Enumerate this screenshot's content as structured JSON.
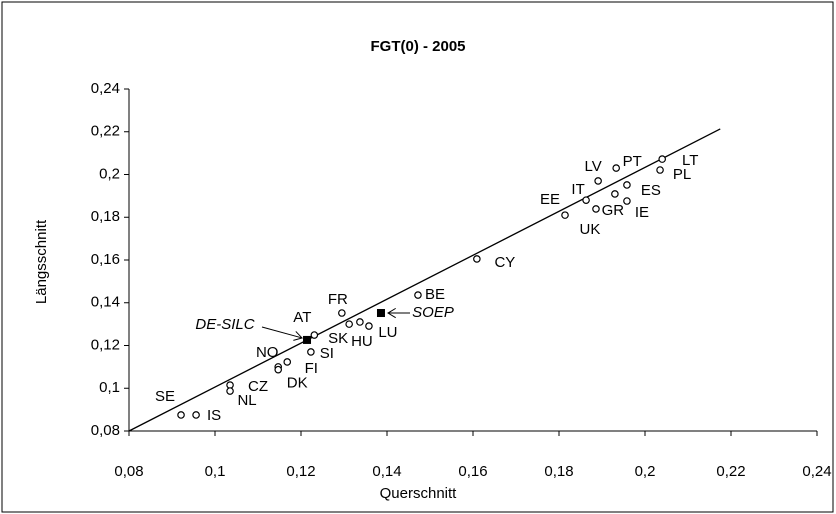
{
  "chart_data": {
    "type": "scatter",
    "title": "FGT(0) - 2005",
    "xlabel": "Querschnitt",
    "ylabel": "Längsschnitt",
    "xlim": [
      0.08,
      0.24
    ],
    "ylim": [
      0.08,
      0.24
    ],
    "xticks": [
      {
        "value": 0.08,
        "label": "0,08"
      },
      {
        "value": 0.1,
        "label": "0,1"
      },
      {
        "value": 0.12,
        "label": "0,12"
      },
      {
        "value": 0.14,
        "label": "0,14"
      },
      {
        "value": 0.16,
        "label": "0,16"
      },
      {
        "value": 0.18,
        "label": "0,18"
      },
      {
        "value": 0.2,
        "label": "0,2"
      },
      {
        "value": 0.22,
        "label": "0,22"
      },
      {
        "value": 0.24,
        "label": "0,24"
      }
    ],
    "yticks": [
      {
        "value": 0.08,
        "label": "0,08"
      },
      {
        "value": 0.1,
        "label": "0,1"
      },
      {
        "value": 0.12,
        "label": "0,12"
      },
      {
        "value": 0.14,
        "label": "0,14"
      },
      {
        "value": 0.16,
        "label": "0,16"
      },
      {
        "value": 0.18,
        "label": "0,18"
      },
      {
        "value": 0.2,
        "label": "0,2"
      },
      {
        "value": 0.22,
        "label": "0,22"
      },
      {
        "value": 0.24,
        "label": "0,24"
      }
    ],
    "points": {
      "labels": [
        "SE",
        "IS",
        "CZ",
        "NL",
        "NO",
        "DK",
        "FI",
        "SI",
        "AT",
        "SK",
        "HU",
        "LU",
        "FR",
        "BE",
        "CY",
        "EE",
        "IT",
        "UK",
        "LV",
        "GR",
        "PT",
        "ES",
        "IE",
        "LT",
        "PL"
      ],
      "x": [
        0.0921,
        0.0956,
        0.1035,
        0.1035,
        0.1147,
        0.1147,
        0.1168,
        0.1223,
        0.1231,
        0.1312,
        0.1337,
        0.1358,
        0.1295,
        0.1472,
        0.1609,
        0.1814,
        0.1863,
        0.1886,
        0.1891,
        0.193,
        0.1933,
        0.1958,
        0.1958,
        0.204,
        0.2035
      ],
      "y": [
        0.0875,
        0.0875,
        0.1015,
        0.0987,
        0.11,
        0.1087,
        0.1123,
        0.117,
        0.1249,
        0.13,
        0.131,
        0.1291,
        0.1352,
        0.1436,
        0.1605,
        0.181,
        0.188,
        0.1839,
        0.197,
        0.1909,
        0.203,
        0.1951,
        0.1876,
        0.2072,
        0.2021
      ],
      "color": "#000000"
    },
    "highlighted": {
      "labels": [
        "DE-SILC",
        "SOEP"
      ],
      "x": [
        0.1214,
        0.1386
      ],
      "y": [
        0.1226,
        0.1352
      ],
      "color": "#000000"
    },
    "trendline": {
      "x": [
        0.08,
        0.2175
      ],
      "y": [
        0.08,
        0.2213
      ]
    }
  }
}
